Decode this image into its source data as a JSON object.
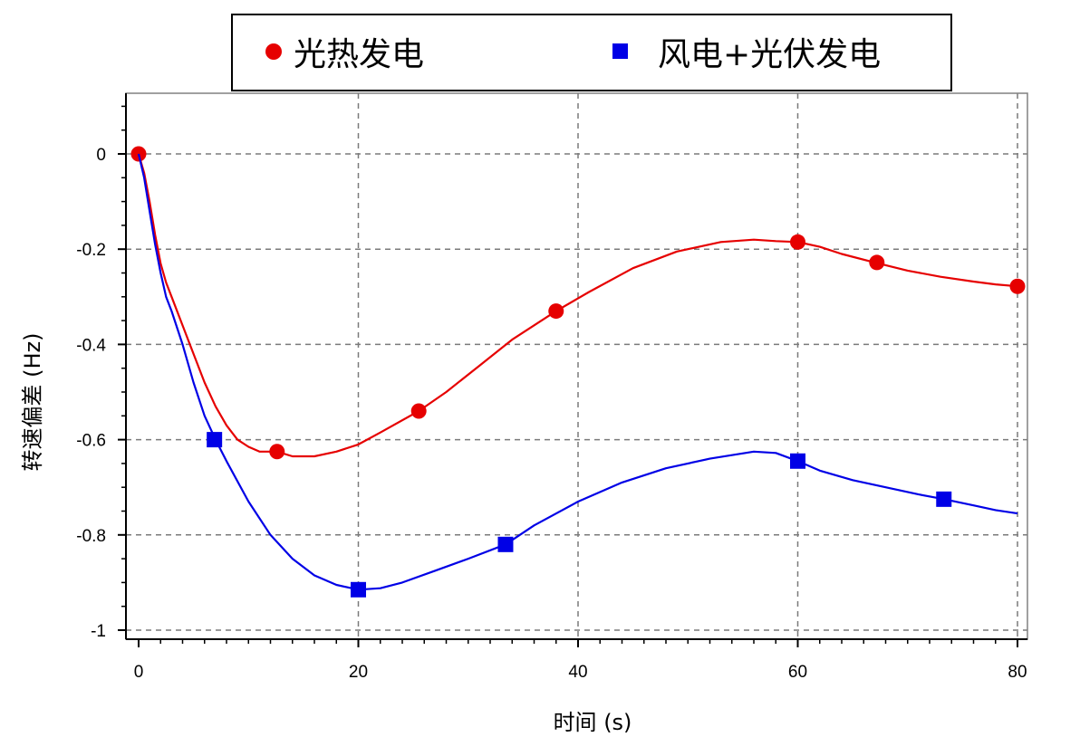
{
  "chart_data": {
    "type": "line",
    "xlabel": "时间 (s)",
    "ylabel": "转速偏差 (Hz)",
    "xlim": [
      0,
      80
    ],
    "ylim": [
      -1.05,
      0.12
    ],
    "x_ticks": [
      0,
      20,
      40,
      60,
      80
    ],
    "x_tick_labels": [
      "0",
      "20",
      "40",
      "60",
      "80"
    ],
    "y_ticks": [
      0,
      -0.2,
      -0.4,
      -0.6,
      -0.8,
      -1
    ],
    "y_tick_labels": [
      "0",
      "-0.2",
      "-0.4",
      "-0.6",
      "-0.8",
      "-1"
    ],
    "grid": true,
    "legend_position": "top",
    "series": [
      {
        "name": "光热发电",
        "color": "#e60000",
        "marker": "circle",
        "x": [
          0,
          0.5,
          1,
          1.5,
          2,
          2.5,
          3,
          4,
          5,
          6,
          7,
          8,
          9,
          10,
          11,
          12.6,
          14,
          16,
          18,
          20,
          22,
          25.5,
          28,
          31,
          34,
          38,
          41,
          45,
          49,
          53,
          56,
          58,
          60,
          62,
          64,
          67,
          70,
          73,
          76,
          78,
          80
        ],
        "y": [
          0,
          -0.04,
          -0.1,
          -0.17,
          -0.23,
          -0.27,
          -0.3,
          -0.36,
          -0.42,
          -0.48,
          -0.53,
          -0.57,
          -0.6,
          -0.615,
          -0.625,
          -0.625,
          -0.635,
          -0.635,
          -0.625,
          -0.61,
          -0.585,
          -0.54,
          -0.5,
          -0.445,
          -0.39,
          -0.33,
          -0.29,
          -0.24,
          -0.205,
          -0.185,
          -0.18,
          -0.183,
          -0.185,
          -0.195,
          -0.21,
          -0.228,
          -0.245,
          -0.258,
          -0.268,
          -0.274,
          -0.278
        ],
        "marker_x": [
          0,
          12.6,
          25.5,
          38,
          60,
          67.2,
          80
        ],
        "marker_y": [
          0,
          -0.625,
          -0.54,
          -0.33,
          -0.185,
          -0.228,
          -0.278
        ]
      },
      {
        "name": "风电+光伏发电",
        "color": "#0000e6",
        "marker": "square",
        "x": [
          0,
          0.5,
          1,
          1.5,
          2,
          2.5,
          3,
          4,
          5,
          6,
          7,
          8,
          10,
          12,
          14,
          16,
          18,
          20,
          22,
          24,
          27,
          30,
          33.4,
          36,
          40,
          44,
          48,
          52,
          56,
          58,
          60,
          62,
          65,
          68,
          71,
          73.3,
          76,
          78,
          80
        ],
        "y": [
          0,
          -0.05,
          -0.12,
          -0.19,
          -0.25,
          -0.3,
          -0.33,
          -0.4,
          -0.48,
          -0.55,
          -0.6,
          -0.645,
          -0.73,
          -0.8,
          -0.85,
          -0.885,
          -0.905,
          -0.915,
          -0.912,
          -0.9,
          -0.875,
          -0.85,
          -0.82,
          -0.78,
          -0.73,
          -0.69,
          -0.66,
          -0.64,
          -0.625,
          -0.628,
          -0.645,
          -0.665,
          -0.685,
          -0.7,
          -0.715,
          -0.725,
          -0.738,
          -0.748,
          -0.755
        ],
        "marker_x": [
          6.9,
          20,
          33.4,
          60,
          73.3
        ],
        "marker_y": [
          -0.6,
          -0.915,
          -0.82,
          -0.645,
          -0.725
        ]
      }
    ]
  }
}
